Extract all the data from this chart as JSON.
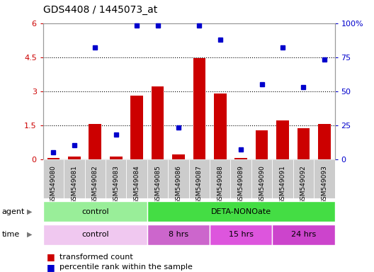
{
  "title": "GDS4408 / 1445073_at",
  "categories": [
    "GSM549080",
    "GSM549081",
    "GSM549082",
    "GSM549083",
    "GSM549084",
    "GSM549085",
    "GSM549086",
    "GSM549087",
    "GSM549088",
    "GSM549089",
    "GSM549090",
    "GSM549091",
    "GSM549092",
    "GSM549093"
  ],
  "red_values": [
    0.05,
    0.12,
    1.55,
    0.1,
    2.8,
    3.22,
    0.22,
    4.45,
    2.88,
    0.05,
    1.28,
    1.72,
    1.35,
    1.55
  ],
  "blue_values": [
    5,
    10,
    82,
    18,
    98,
    98,
    23,
    98,
    88,
    7,
    55,
    82,
    53,
    73
  ],
  "ylim_left": [
    0,
    6
  ],
  "ylim_right": [
    0,
    100
  ],
  "yticks_left": [
    0,
    1.5,
    3,
    4.5,
    6
  ],
  "yticks_right": [
    0,
    25,
    50,
    75,
    100
  ],
  "ytick_labels_right": [
    "0",
    "25",
    "50",
    "75",
    "100%"
  ],
  "bar_color": "#cc0000",
  "dot_color": "#0000cc",
  "agent_row": [
    {
      "label": "control",
      "start": 0,
      "end": 5,
      "color": "#99ee99"
    },
    {
      "label": "DETA-NONOate",
      "start": 5,
      "end": 14,
      "color": "#44dd44"
    }
  ],
  "time_row": [
    {
      "label": "control",
      "start": 0,
      "end": 5,
      "color": "#f0c8f0"
    },
    {
      "label": "8 hrs",
      "start": 5,
      "end": 8,
      "color": "#cc66cc"
    },
    {
      "label": "15 hrs",
      "start": 8,
      "end": 11,
      "color": "#dd55dd"
    },
    {
      "label": "24 hrs",
      "start": 11,
      "end": 14,
      "color": "#cc44cc"
    }
  ],
  "legend_red": "transformed count",
  "legend_blue": "percentile rank within the sample",
  "xtick_bg": "#cccccc",
  "plot_bg": "#ffffff",
  "fig_bg": "#ffffff"
}
